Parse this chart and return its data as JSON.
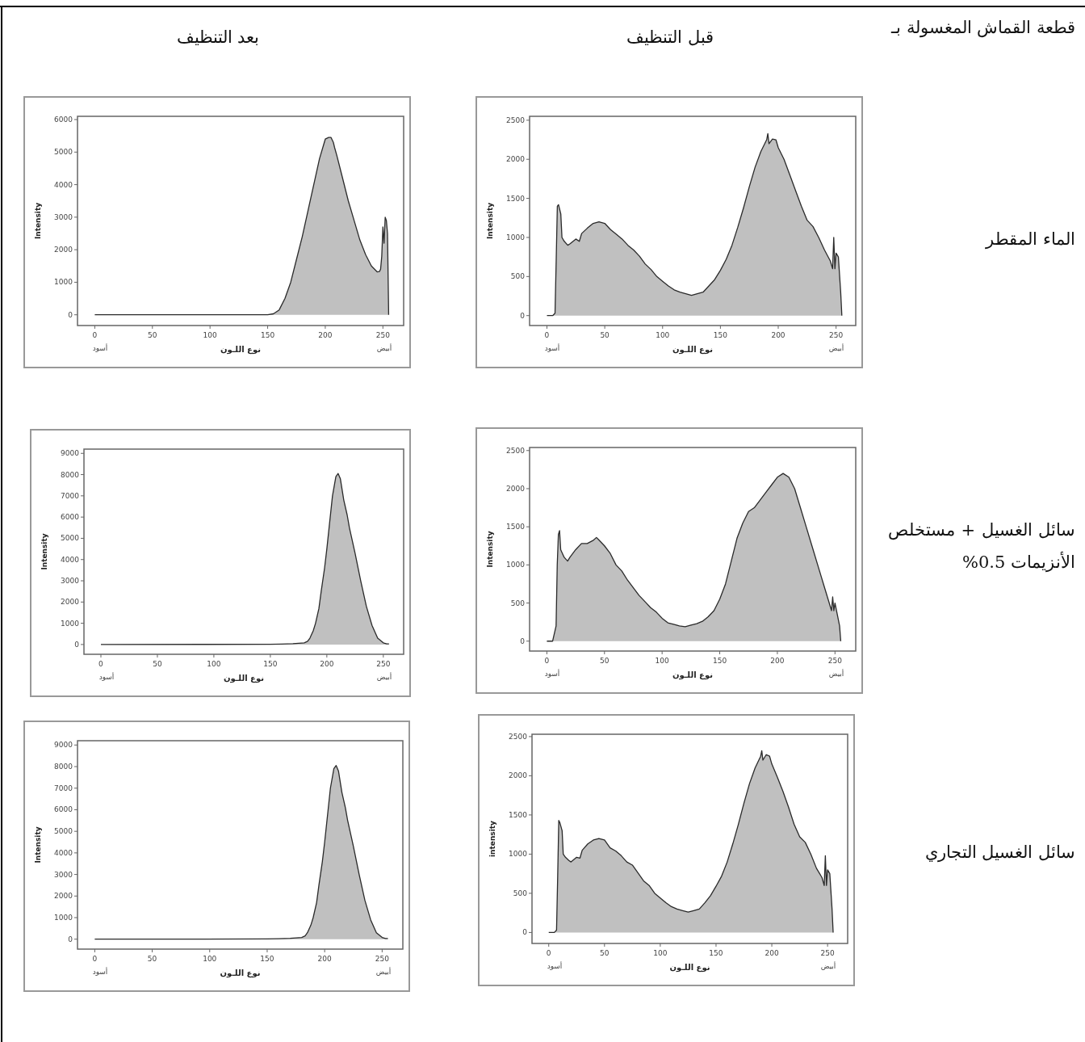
{
  "chart_data": [
    {
      "type": "area",
      "xlabel": "نوع اللـون",
      "ylabel": "Intensity",
      "xlim": [
        -15,
        268
      ],
      "ylim": [
        -330,
        6100
      ],
      "xticks": [
        0,
        50,
        100,
        150,
        200,
        250
      ],
      "yticks": [
        0,
        1000,
        2000,
        3000,
        4000,
        5000,
        6000
      ],
      "annotations": [
        "أسود",
        "أبيض"
      ],
      "series": [
        {
          "color": "#c0c0c0",
          "x": [
            0,
            150,
            155,
            160,
            165,
            170,
            175,
            180,
            185,
            190,
            195,
            200,
            203,
            205,
            207,
            208,
            210,
            215,
            220,
            225,
            230,
            235,
            240,
            245,
            247,
            248,
            249,
            250,
            251,
            252,
            253,
            254,
            255
          ],
          "values": [
            0,
            0,
            30,
            150,
            500,
            1000,
            1700,
            2400,
            3200,
            4000,
            4800,
            5400,
            5450,
            5450,
            5300,
            5150,
            4900,
            4200,
            3500,
            2900,
            2300,
            1850,
            1500,
            1320,
            1330,
            1400,
            1800,
            2700,
            2200,
            3000,
            2900,
            2500,
            0
          ]
        }
      ]
    },
    {
      "type": "area",
      "xlabel": "نوع اللـون",
      "ylabel": "Intensity",
      "xlim": [
        -15,
        267
      ],
      "ylim": [
        -127,
        2550
      ],
      "xticks": [
        0,
        50,
        100,
        150,
        200,
        250
      ],
      "yticks": [
        0,
        500,
        1000,
        1500,
        2000,
        2500
      ],
      "annotations": [
        "أسود",
        "أبيض"
      ],
      "series": [
        {
          "color": "#c0c0c0",
          "x": [
            0,
            5,
            7,
            8,
            9,
            10,
            12,
            13,
            15,
            18,
            20,
            25,
            28,
            30,
            35,
            40,
            45,
            50,
            55,
            60,
            65,
            70,
            75,
            80,
            85,
            90,
            95,
            100,
            105,
            110,
            115,
            120,
            125,
            130,
            135,
            140,
            145,
            150,
            155,
            160,
            165,
            170,
            175,
            180,
            185,
            190,
            191,
            192,
            195,
            198,
            200,
            205,
            210,
            215,
            220,
            225,
            230,
            235,
            240,
            245,
            247,
            248,
            249,
            250,
            252,
            254,
            255
          ],
          "values": [
            0,
            0,
            30,
            700,
            1400,
            1420,
            1300,
            1000,
            950,
            900,
            920,
            980,
            950,
            1050,
            1120,
            1180,
            1200,
            1180,
            1100,
            1040,
            980,
            900,
            840,
            760,
            660,
            590,
            500,
            440,
            380,
            330,
            300,
            280,
            260,
            280,
            300,
            380,
            460,
            580,
            720,
            900,
            1130,
            1380,
            1650,
            1900,
            2100,
            2250,
            2330,
            2200,
            2260,
            2250,
            2150,
            2000,
            1800,
            1600,
            1400,
            1220,
            1140,
            1000,
            840,
            700,
            600,
            1000,
            600,
            800,
            750,
            300,
            0
          ]
        }
      ]
    },
    {
      "type": "area",
      "xlabel": "نوع اللـون",
      "ylabel": "Intensity",
      "xlim": [
        -15,
        268
      ],
      "ylim": [
        -460,
        9200
      ],
      "xticks": [
        0,
        50,
        100,
        150,
        200,
        250
      ],
      "yticks": [
        0,
        1000,
        2000,
        3000,
        4000,
        5000,
        6000,
        7000,
        8000,
        9000
      ],
      "annotations": [
        "أسود",
        "أبيض"
      ],
      "series": [
        {
          "color": "#c0c0c0",
          "x": [
            0,
            150,
            160,
            170,
            180,
            183,
            185,
            188,
            190,
            193,
            195,
            198,
            200,
            203,
            205,
            208,
            210,
            212,
            215,
            218,
            220,
            225,
            230,
            235,
            240,
            245,
            250,
            253,
            255
          ],
          "values": [
            0,
            10,
            20,
            40,
            80,
            150,
            300,
            650,
            1000,
            1700,
            2500,
            3600,
            4500,
            6000,
            7000,
            7900,
            8050,
            7800,
            6800,
            6100,
            5500,
            4300,
            3000,
            1800,
            900,
            300,
            80,
            30,
            30
          ]
        }
      ]
    },
    {
      "type": "area",
      "xlabel": "نوع اللـون",
      "ylabel": "Intensity",
      "xlim": [
        -15,
        268
      ],
      "ylim": [
        -130,
        2540
      ],
      "xticks": [
        0,
        50,
        100,
        150,
        200,
        250
      ],
      "yticks": [
        0,
        500,
        1000,
        1500,
        2000,
        2500
      ],
      "annotations": [
        "أسود",
        "أبيض"
      ],
      "series": [
        {
          "color": "#c0c0c0",
          "x": [
            0,
            5,
            8,
            9,
            10,
            11,
            12,
            15,
            18,
            20,
            25,
            30,
            35,
            40,
            43,
            45,
            50,
            55,
            60,
            65,
            70,
            75,
            80,
            85,
            90,
            95,
            100,
            105,
            110,
            115,
            120,
            125,
            130,
            135,
            140,
            145,
            150,
            155,
            160,
            165,
            170,
            175,
            180,
            185,
            190,
            195,
            200,
            205,
            210,
            215,
            220,
            225,
            230,
            235,
            240,
            245,
            247,
            248,
            249,
            250,
            252,
            254,
            255
          ],
          "values": [
            0,
            0,
            200,
            1000,
            1400,
            1450,
            1200,
            1100,
            1050,
            1100,
            1200,
            1280,
            1280,
            1320,
            1360,
            1330,
            1250,
            1150,
            1000,
            920,
            800,
            700,
            600,
            520,
            440,
            380,
            300,
            240,
            220,
            200,
            190,
            210,
            230,
            260,
            320,
            400,
            550,
            750,
            1050,
            1350,
            1550,
            1700,
            1750,
            1850,
            1950,
            2050,
            2150,
            2200,
            2150,
            2000,
            1750,
            1500,
            1250,
            1000,
            750,
            500,
            400,
            580,
            400,
            500,
            350,
            200,
            0
          ]
        }
      ]
    },
    {
      "type": "area",
      "xlabel": "نوع اللـون",
      "ylabel": "Intensity",
      "xlim": [
        -15,
        268
      ],
      "ylim": [
        -460,
        9200
      ],
      "xticks": [
        0,
        50,
        100,
        150,
        200,
        250
      ],
      "yticks": [
        0,
        1000,
        2000,
        3000,
        4000,
        5000,
        6000,
        7000,
        8000,
        9000
      ],
      "annotations": [
        "أسود",
        "أبيض"
      ],
      "series": [
        {
          "color": "#c0c0c0",
          "x": [
            0,
            150,
            160,
            170,
            180,
            183,
            185,
            188,
            190,
            193,
            195,
            198,
            200,
            203,
            205,
            208,
            210,
            212,
            215,
            218,
            220,
            225,
            230,
            235,
            240,
            245,
            250,
            253,
            255
          ],
          "values": [
            0,
            10,
            20,
            40,
            80,
            150,
            300,
            650,
            1000,
            1700,
            2500,
            3600,
            4500,
            6000,
            7000,
            7900,
            8050,
            7800,
            6800,
            6100,
            5500,
            4300,
            3000,
            1800,
            900,
            300,
            80,
            30,
            30
          ]
        }
      ]
    },
    {
      "type": "area",
      "xlabel": "نوع اللـون",
      "ylabel": "intensity",
      "xlim": [
        -15,
        268
      ],
      "ylim": [
        -140,
        2530
      ],
      "xticks": [
        0,
        50,
        100,
        150,
        200,
        250
      ],
      "yticks": [
        0,
        500,
        1000,
        1500,
        2000,
        2500
      ],
      "annotations": [
        "أسود",
        "أبيض"
      ],
      "series": [
        {
          "color": "#c0c0c0",
          "x": [
            0,
            5,
            7,
            8,
            9,
            10,
            12,
            13,
            15,
            18,
            20,
            25,
            28,
            30,
            35,
            40,
            45,
            50,
            55,
            60,
            65,
            70,
            75,
            80,
            85,
            90,
            95,
            100,
            105,
            110,
            115,
            120,
            125,
            130,
            135,
            140,
            145,
            150,
            155,
            160,
            165,
            170,
            175,
            180,
            185,
            190,
            191,
            192,
            195,
            198,
            200,
            205,
            210,
            215,
            220,
            225,
            230,
            235,
            240,
            245,
            247,
            248,
            249,
            250,
            252,
            254,
            255
          ],
          "values": [
            0,
            0,
            30,
            700,
            1430,
            1400,
            1300,
            1000,
            960,
            920,
            900,
            960,
            950,
            1050,
            1130,
            1180,
            1200,
            1180,
            1080,
            1040,
            980,
            900,
            860,
            760,
            660,
            600,
            500,
            440,
            380,
            330,
            300,
            280,
            260,
            280,
            300,
            380,
            470,
            590,
            720,
            900,
            1130,
            1380,
            1650,
            1900,
            2100,
            2250,
            2320,
            2200,
            2270,
            2250,
            2150,
            1980,
            1800,
            1600,
            1380,
            1220,
            1150,
            1000,
            820,
            700,
            600,
            980,
            600,
            800,
            750,
            300,
            0
          ]
        }
      ]
    },
    {
      "type": "other",
      "annotations": [
        "قطعة القماش المغسولة بـ",
        "بعد التنظيف",
        "قبل التنظيف",
        "الماء المقطر",
        "سائل الغسيل + مستخلص الأنزيمات 0.5%",
        "سائل الغسيل التجاري"
      ]
    }
  ]
}
